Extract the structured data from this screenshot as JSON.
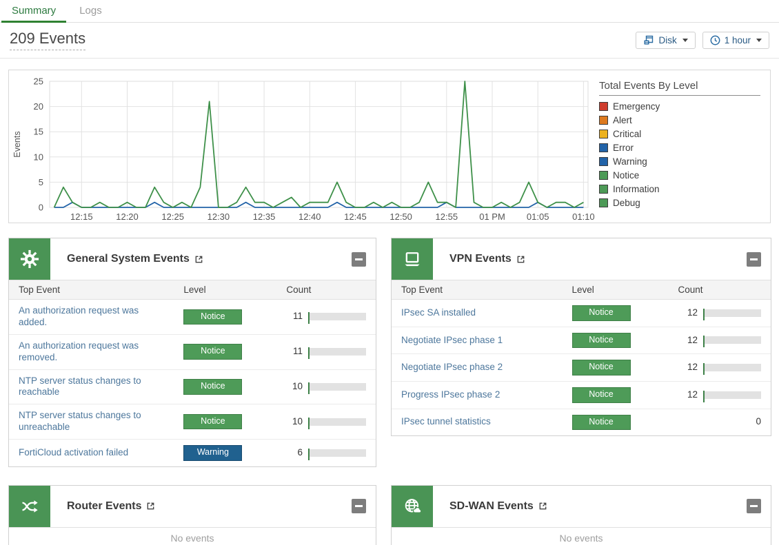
{
  "tabs": [
    {
      "label": "Summary",
      "active": true
    },
    {
      "label": "Logs",
      "active": false
    }
  ],
  "header": {
    "title": "209 Events",
    "disk_button": {
      "label": "Disk"
    },
    "time_button": {
      "label": "1 hour"
    }
  },
  "colors": {
    "brand_green": "#4a9455",
    "notice_green": "#4e9b58",
    "warning_blue": "#20618f",
    "link_blue": "#4d779c",
    "button_blue": "#2b6ca3"
  },
  "chart_data": {
    "type": "line",
    "title": "Total Events By Level",
    "ylabel": "Events",
    "ylim": [
      0,
      25
    ],
    "yticks": [
      0,
      5,
      10,
      15,
      20,
      25
    ],
    "grid": true,
    "x_start_time": "12:12",
    "x_step_minutes": 1,
    "x_tick_labels": [
      "12:15",
      "12:20",
      "12:25",
      "12:30",
      "12:35",
      "12:40",
      "12:45",
      "12:50",
      "12:55",
      "01 PM",
      "01:05",
      "01:10"
    ],
    "legend_position": "right",
    "legend_title": "Total Events By Level",
    "legend_items": [
      {
        "label": "Emergency",
        "color": "#ce3c2d"
      },
      {
        "label": "Alert",
        "color": "#dd7a1f"
      },
      {
        "label": "Critical",
        "color": "#edb220"
      },
      {
        "label": "Error",
        "color": "#2263a8"
      },
      {
        "label": "Warning",
        "color": "#2263a8"
      },
      {
        "label": "Notice",
        "color": "#4d9a57"
      },
      {
        "label": "Information",
        "color": "#4d9a57"
      },
      {
        "label": "Debug",
        "color": "#4d9a57"
      }
    ],
    "series": [
      {
        "name": "Warning",
        "color": "#2263a8",
        "values": [
          0,
          0,
          1,
          0,
          0,
          0,
          0,
          0,
          0,
          0,
          0,
          1,
          0,
          0,
          0,
          0,
          0,
          0,
          0,
          0,
          0,
          1,
          0,
          0,
          0,
          0,
          0,
          0,
          0,
          0,
          0,
          1,
          0,
          0,
          0,
          0,
          0,
          0,
          0,
          0,
          0,
          0,
          0,
          1,
          0,
          0,
          0,
          0,
          0,
          0,
          0,
          0,
          0,
          1,
          0,
          0,
          0,
          0,
          0
        ]
      },
      {
        "name": "Notice",
        "color": "#3e9049",
        "values": [
          0,
          4,
          1,
          0,
          0,
          1,
          0,
          0,
          1,
          0,
          0,
          4,
          1,
          0,
          1,
          0,
          4,
          21,
          0,
          0,
          1,
          4,
          1,
          1,
          0,
          1,
          2,
          0,
          1,
          1,
          1,
          5,
          1,
          0,
          0,
          1,
          0,
          1,
          0,
          0,
          1,
          5,
          1,
          1,
          0,
          25,
          1,
          0,
          0,
          1,
          0,
          1,
          5,
          1,
          0,
          1,
          1,
          0,
          1
        ]
      },
      {
        "name": "Emergency",
        "color": "#ce3c2d",
        "values_note": "all zero",
        "values": []
      },
      {
        "name": "Alert",
        "color": "#dd7a1f",
        "values_note": "all zero",
        "values": []
      },
      {
        "name": "Critical",
        "color": "#edb220",
        "values_note": "all zero",
        "values": []
      },
      {
        "name": "Error",
        "color": "#2263a8",
        "values_note": "all zero",
        "values": []
      },
      {
        "name": "Information",
        "color": "#4d9a57",
        "values_note": "all zero",
        "values": []
      },
      {
        "name": "Debug",
        "color": "#4d9a57",
        "values_note": "all zero",
        "values": []
      }
    ]
  },
  "widgets": {
    "columns": [
      "Top Event",
      "Level",
      "Count"
    ],
    "general": {
      "title": "General System Events",
      "bar_max": 11,
      "rows": [
        {
          "event": "An authorization request was added.",
          "level": "Notice",
          "count": 11
        },
        {
          "event": "An authorization request was removed.",
          "level": "Notice",
          "count": 11
        },
        {
          "event": "NTP server status changes to reachable",
          "level": "Notice",
          "count": 10
        },
        {
          "event": "NTP server status changes to unreachable",
          "level": "Notice",
          "count": 10
        },
        {
          "event": "FortiCloud activation failed",
          "level": "Warning",
          "count": 6
        }
      ]
    },
    "vpn": {
      "title": "VPN Events",
      "bar_max": 12,
      "rows": [
        {
          "event": "IPsec SA installed",
          "level": "Notice",
          "count": 12
        },
        {
          "event": "Negotiate IPsec phase 1",
          "level": "Notice",
          "count": 12
        },
        {
          "event": "Negotiate IPsec phase 2",
          "level": "Notice",
          "count": 12
        },
        {
          "event": "Progress IPsec phase 2",
          "level": "Notice",
          "count": 12
        },
        {
          "event": "IPsec tunnel statistics",
          "level": "Notice",
          "count": 0
        }
      ]
    },
    "router": {
      "title": "Router Events",
      "empty_text": "No events"
    },
    "sdwan": {
      "title": "SD-WAN Events",
      "empty_text": "No events"
    }
  }
}
